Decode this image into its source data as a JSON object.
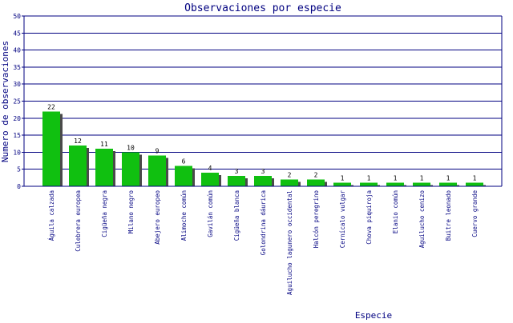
{
  "chart_data": {
    "type": "bar",
    "title": "Observaciones por especie",
    "xlabel": "Especie",
    "ylabel": "Numero de observaciones",
    "ylim": [
      0,
      50
    ],
    "yticks": [
      0,
      5,
      10,
      15,
      20,
      25,
      30,
      35,
      40,
      45,
      50
    ],
    "grid": true,
    "categories": [
      "Águila calzada",
      "Culebrera europea",
      "Cigüeña negra",
      "Milano negro",
      "Abejero europeo",
      "Alimoche común",
      "Gavilán común",
      "Cigüeña blanca",
      "Golondrina dáurica",
      "Aguilucho lagunero occidental",
      "Halcón peregrino",
      "Cernícalo vulgar",
      "Chova piquiroja",
      "Elanio común",
      "Aguilucho cenizo",
      "Buitre leonado",
      "Cuervo grande"
    ],
    "values": [
      22,
      12,
      11,
      10,
      9,
      6,
      4,
      3,
      3,
      2,
      2,
      1,
      1,
      1,
      1,
      1,
      1
    ],
    "data_labels": [
      "22",
      "12",
      "11",
      "10",
      "9",
      "6",
      "4",
      "3",
      "3",
      "2",
      "2",
      "1",
      "1",
      "1",
      "1",
      "1",
      "1"
    ],
    "colors": {
      "bar": "#10c010",
      "bar_shadow": "#4a4a4a",
      "grid": "#000080",
      "axis": "#000080",
      "text": "#000080",
      "value_label": "#000000",
      "background": "#ffffff"
    }
  }
}
